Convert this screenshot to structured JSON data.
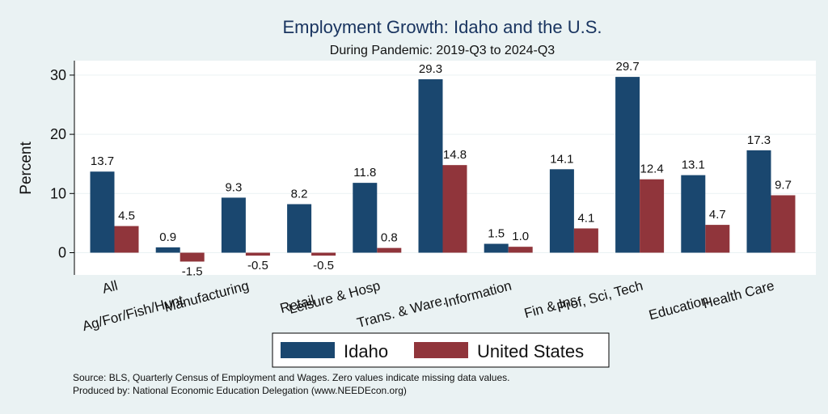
{
  "chart_data": {
    "type": "bar",
    "title": "Employment Growth: Idaho and the U.S.",
    "subtitle": "During Pandemic: 2019-Q3 to 2024-Q3",
    "ylabel": "Percent",
    "ylim": [
      -3,
      32
    ],
    "yticks": [
      0,
      10,
      20,
      30
    ],
    "grid": true,
    "legend_position": "bottom",
    "categories": [
      "All",
      "Ag/For/Fish/Hunt",
      "Manufacturing",
      "Retail",
      "Leisure & Hosp",
      "Trans. & Ware.",
      "Information",
      "Fin & Ins",
      "Prof, Sci, Tech",
      "Education",
      "Health Care"
    ],
    "series": [
      {
        "name": "Idaho",
        "color": "#1a476f",
        "values": [
          13.7,
          0.9,
          9.3,
          8.2,
          11.8,
          29.3,
          1.5,
          14.1,
          29.7,
          13.1,
          17.3
        ],
        "labels": [
          "13.7",
          "0.9",
          "9.3",
          "8.2",
          "11.8",
          "29.3",
          "1.5",
          "14.1",
          "29.7",
          "13.1",
          "17.3"
        ]
      },
      {
        "name": "United States",
        "color": "#90353b",
        "values": [
          4.5,
          -1.5,
          -0.5,
          -0.5,
          0.8,
          14.8,
          1.0,
          4.1,
          12.4,
          4.7,
          9.7
        ],
        "labels": [
          "4.5",
          "-1.5",
          "-0.5",
          "-0.5",
          "0.8",
          "14.8",
          "1.0",
          "4.1",
          "12.4",
          "4.7",
          "9.7"
        ]
      }
    ]
  },
  "notes": [
    "Source: BLS, Quarterly Census of Employment and Wages. Zero values indicate missing data values.",
    "Produced by: National Economic Education Delegation (www.NEEDEcon.org)"
  ]
}
